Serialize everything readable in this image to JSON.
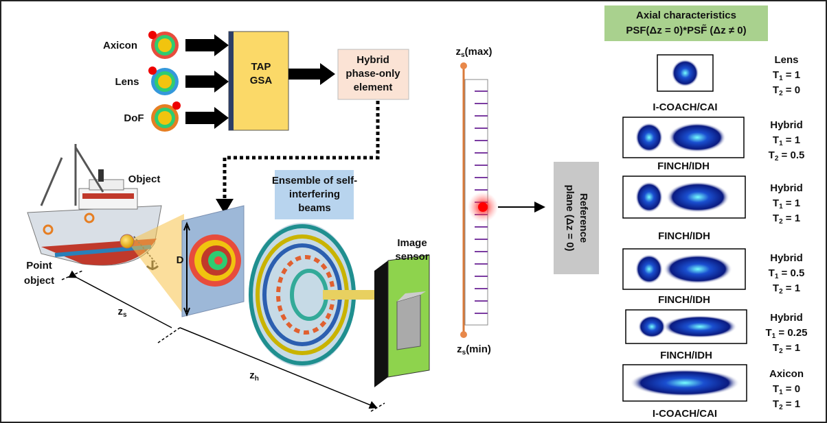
{
  "inputs": [
    "Axicon",
    "Lens",
    "DoF"
  ],
  "algorithm": [
    "TAP",
    "GSA"
  ],
  "element": [
    "Hybrid",
    "phase-only",
    "element"
  ],
  "object": "Object",
  "point_object": [
    "Point",
    "object"
  ],
  "ensemble": [
    "Ensemble of self-",
    "interfering",
    "beams"
  ],
  "sensor": [
    "Image",
    "sensor"
  ],
  "aperture": "D",
  "distances": [
    {
      "main": "z",
      "sub": "s"
    },
    {
      "main": "z",
      "sub": "h"
    }
  ],
  "ruler": {
    "top": {
      "main": "z",
      "sub": "s",
      "rest": "(max)"
    },
    "bottom": {
      "main": "z",
      "sub": "s",
      "rest": "(min)"
    }
  },
  "reference": [
    "Reference",
    "plane (Δz = 0)"
  ],
  "header": [
    "Axial characteristics",
    "PSF(Δz = 0)*PSF̃ (Δz ≠ 0)"
  ],
  "panels": [
    {
      "method": "I-COACH/CAI",
      "type": "Lens",
      "t1": {
        "symbol": "T",
        "sub": "1",
        "rest": " = 1"
      },
      "t2": {
        "symbol": "T",
        "sub": "2",
        "rest": " = 0"
      }
    },
    {
      "method": "FINCH/IDH",
      "type": "Hybrid",
      "t1": {
        "symbol": "T",
        "sub": "1",
        "rest": " = 1"
      },
      "t2": {
        "symbol": "T",
        "sub": "2",
        "rest": " = 0.5"
      }
    },
    {
      "method": "FINCH/IDH",
      "type": "Hybrid",
      "t1": {
        "symbol": "T",
        "sub": "1",
        "rest": " = 1"
      },
      "t2": {
        "symbol": "T",
        "sub": "2",
        "rest": " = 1"
      }
    },
    {
      "method": "FINCH/IDH",
      "type": "Hybrid",
      "t1": {
        "symbol": "T",
        "sub": "1",
        "rest": " = 0.5"
      },
      "t2": {
        "symbol": "T",
        "sub": "2",
        "rest": " = 1"
      }
    },
    {
      "method": "FINCH/IDH",
      "type": "Hybrid",
      "t1": {
        "symbol": "T",
        "sub": "1",
        "rest": " = 0.25"
      },
      "t2": {
        "symbol": "T",
        "sub": "2",
        "rest": " = 1"
      }
    },
    {
      "method": "I-COACH/CAI",
      "type": "Axicon",
      "t1": {
        "symbol": "T",
        "sub": "1",
        "rest": " = 0"
      },
      "t2": {
        "symbol": "T",
        "sub": "2",
        "rest": " = 1"
      }
    }
  ]
}
